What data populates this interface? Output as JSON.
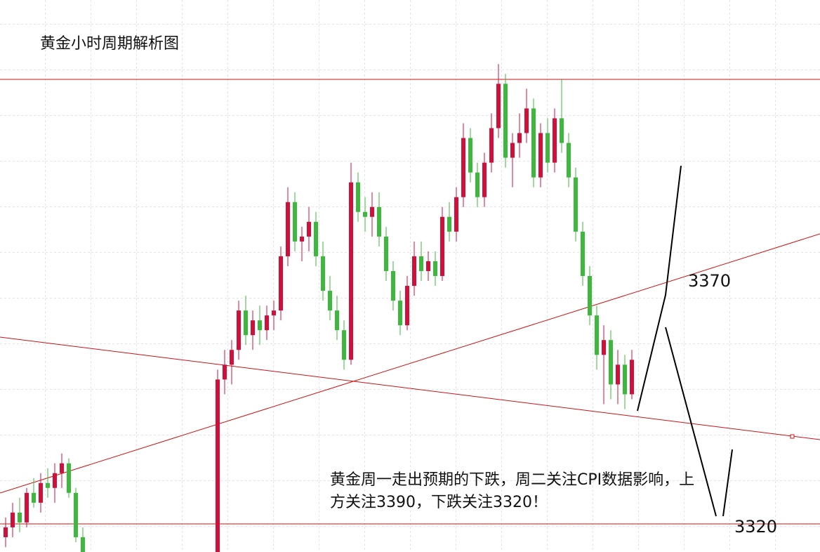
{
  "chart_data": {
    "type": "candlestick",
    "title": "黄金小时周期解析图",
    "annotation": "黄金周一走出预期的下跌，周二关注CPI数据影响，上方关注3390，下跌关注3320！",
    "level_labels": [
      "3370",
      "3320"
    ],
    "up_color": "#d0103a",
    "down_color": "#3cb83c",
    "ylim": [
      3315,
      3427
    ],
    "candles": [
      [
        3318,
        3322,
        3316,
        3320
      ],
      [
        3320,
        3325,
        3318,
        3323
      ],
      [
        3323,
        3326,
        3319,
        3321
      ],
      [
        3321,
        3328,
        3320,
        3327
      ],
      [
        3327,
        3330,
        3324,
        3325
      ],
      [
        3325,
        3331,
        3323,
        3329
      ],
      [
        3329,
        3332,
        3326,
        3328
      ],
      [
        3328,
        3333,
        3325,
        3331
      ],
      [
        3331,
        3335,
        3328,
        3333
      ],
      [
        3333,
        3334,
        3326,
        3327
      ],
      [
        3327,
        3328,
        3317,
        3318
      ],
      [
        3318,
        3320,
        3314,
        3315
      ],
      [
        3315,
        3352,
        3315,
        3350
      ],
      [
        3350,
        3356,
        3347,
        3353
      ],
      [
        3353,
        3358,
        3349,
        3356
      ],
      [
        3356,
        3366,
        3354,
        3364
      ],
      [
        3364,
        3367,
        3357,
        3359
      ],
      [
        3359,
        3364,
        3356,
        3362
      ],
      [
        3362,
        3365,
        3357,
        3360
      ],
      [
        3360,
        3365,
        3358,
        3363
      ],
      [
        3363,
        3366,
        3360,
        3364
      ],
      [
        3364,
        3377,
        3362,
        3375
      ],
      [
        3375,
        3389,
        3373,
        3386
      ],
      [
        3386,
        3388,
        3376,
        3378
      ],
      [
        3378,
        3381,
        3374,
        3379
      ],
      [
        3379,
        3385,
        3376,
        3382
      ],
      [
        3382,
        3384,
        3373,
        3375
      ],
      [
        3375,
        3378,
        3366,
        3368
      ],
      [
        3368,
        3371,
        3362,
        3364
      ],
      [
        3364,
        3367,
        3358,
        3360
      ],
      [
        3360,
        3362,
        3352,
        3354
      ],
      [
        3354,
        3394,
        3353,
        3390
      ],
      [
        3390,
        3392,
        3382,
        3384
      ],
      [
        3384,
        3387,
        3380,
        3383
      ],
      [
        3383,
        3388,
        3379,
        3385
      ],
      [
        3385,
        3388,
        3377,
        3379
      ],
      [
        3379,
        3381,
        3370,
        3372
      ],
      [
        3372,
        3374,
        3364,
        3366
      ],
      [
        3366,
        3368,
        3359,
        3361
      ],
      [
        3361,
        3371,
        3360,
        3369
      ],
      [
        3369,
        3378,
        3367,
        3375
      ],
      [
        3375,
        3378,
        3370,
        3372
      ],
      [
        3372,
        3376,
        3370,
        3374
      ],
      [
        3374,
        3376,
        3369,
        3371
      ],
      [
        3371,
        3385,
        3370,
        3383
      ],
      [
        3383,
        3386,
        3378,
        3380
      ],
      [
        3380,
        3389,
        3378,
        3387
      ],
      [
        3387,
        3402,
        3385,
        3399
      ],
      [
        3399,
        3401,
        3390,
        3392
      ],
      [
        3392,
        3394,
        3385,
        3387
      ],
      [
        3387,
        3396,
        3385,
        3394
      ],
      [
        3394,
        3404,
        3392,
        3401
      ],
      [
        3401,
        3414,
        3399,
        3410
      ],
      [
        3410,
        3412,
        3393,
        3395
      ],
      [
        3395,
        3400,
        3389,
        3398
      ],
      [
        3398,
        3404,
        3395,
        3400
      ],
      [
        3400,
        3409,
        3398,
        3405
      ],
      [
        3405,
        3407,
        3389,
        3391
      ],
      [
        3391,
        3402,
        3389,
        3400
      ],
      [
        3400,
        3403,
        3392,
        3394
      ],
      [
        3394,
        3405,
        3392,
        3403
      ],
      [
        3403,
        3411,
        3396,
        3398
      ],
      [
        3398,
        3400,
        3389,
        3391
      ],
      [
        3391,
        3393,
        3378,
        3380
      ],
      [
        3380,
        3382,
        3369,
        3371
      ],
      [
        3371,
        3373,
        3361,
        3363
      ],
      [
        3363,
        3365,
        3352,
        3355
      ],
      [
        3355,
        3361,
        3345,
        3358
      ],
      [
        3358,
        3360,
        3346,
        3349
      ],
      [
        3349,
        3356,
        3345,
        3353
      ],
      [
        3353,
        3355,
        3344,
        3347
      ],
      [
        3347,
        3356,
        3346,
        3354
      ]
    ]
  }
}
